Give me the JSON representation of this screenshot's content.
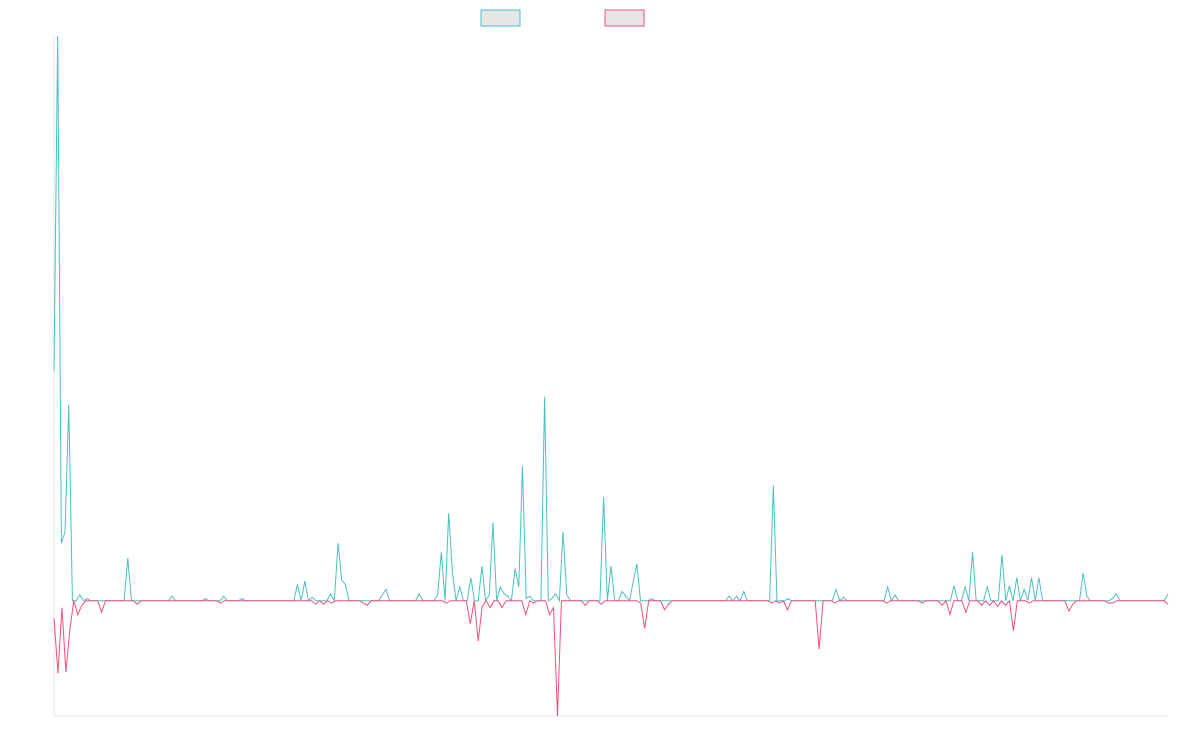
{
  "chart_data": {
    "type": "line",
    "title": "",
    "xlabel": "",
    "ylabel": "",
    "grid": false,
    "legend_position": "top-center",
    "legend_labels_visible": false,
    "ylim": [
      -1.0,
      4.9
    ],
    "baseline": 0,
    "series": [
      {
        "color": "#4bc0c0",
        "values": [
          2.0,
          4.9,
          0.5,
          0.6,
          1.7,
          0.0,
          0.0,
          0.05,
          0.0,
          0.02,
          0.0,
          0.0,
          0.0,
          0.0,
          0.0,
          0.0,
          0.0,
          0.0,
          0.0,
          0.0,
          0.37,
          0.0,
          0.0,
          0.0,
          0.0,
          0.0,
          0.0,
          0.0,
          0.0,
          0.0,
          0.0,
          0.0,
          0.04,
          0.0,
          0.0,
          0.0,
          0.0,
          0.0,
          0.0,
          0.0,
          0.0,
          0.02,
          0.0,
          0.0,
          0.0,
          0.0,
          0.04,
          0.0,
          0.0,
          0.0,
          0.0,
          0.02,
          0.0,
          0.0,
          0.0,
          0.0,
          0.0,
          0.0,
          0.0,
          0.0,
          0.0,
          0.0,
          0.0,
          0.0,
          0.0,
          0.0,
          0.14,
          0.0,
          0.17,
          0.0,
          0.03,
          0.0,
          0.0,
          0.0,
          0.0,
          0.06,
          0.0,
          0.5,
          0.18,
          0.14,
          0.0,
          0.0,
          0.0,
          0.0,
          0.0,
          0.0,
          0.0,
          0.0,
          0.0,
          0.05,
          0.1,
          0.0,
          0.0,
          0.0,
          0.0,
          0.0,
          0.0,
          0.0,
          0.0,
          0.06,
          0.0,
          0.0,
          0.0,
          0.0,
          0.05,
          0.42,
          0.0,
          0.76,
          0.25,
          0.0,
          0.12,
          0.0,
          0.0,
          0.2,
          0.0,
          0.0,
          0.3,
          0.0,
          0.05,
          0.68,
          0.0,
          0.12,
          0.06,
          0.04,
          0.0,
          0.28,
          0.12,
          1.17,
          0.02,
          0.04,
          0.0,
          0.0,
          0.0,
          1.77,
          0.0,
          0.02,
          0.06,
          0.0,
          0.6,
          0.05,
          0.0,
          0.0,
          0.0,
          0.0,
          0.0,
          0.0,
          0.0,
          0.0,
          0.0,
          0.9,
          0.0,
          0.3,
          0.0,
          0.0,
          0.08,
          0.04,
          0.0,
          0.16,
          0.32,
          0.0,
          0.0,
          0.0,
          0.02,
          0.0,
          0.0,
          0.0,
          0.0,
          0.0,
          0.0,
          0.0,
          0.0,
          0.0,
          0.0,
          0.0,
          0.0,
          0.0,
          0.0,
          0.0,
          0.0,
          0.0,
          0.0,
          0.0,
          0.0,
          0.04,
          0.0,
          0.04,
          0.0,
          0.08,
          0.0,
          0.0,
          0.0,
          0.0,
          0.0,
          0.0,
          0.0,
          1.0,
          0.0,
          0.0,
          0.0,
          0.02,
          0.0,
          0.0,
          0.0,
          0.0,
          0.0,
          0.0,
          0.0,
          0.0,
          0.0,
          0.0,
          0.0,
          0.0,
          0.1,
          0.0,
          0.03,
          0.0,
          0.0,
          0.0,
          0.0,
          0.0,
          0.0,
          0.0,
          0.0,
          0.0,
          0.0,
          0.0,
          0.12,
          0.0,
          0.05,
          0.0,
          0.0,
          0.0,
          0.0,
          0.0,
          0.0,
          0.0,
          0.0,
          0.0,
          0.0,
          0.0,
          0.0,
          0.0,
          0.0,
          0.0,
          0.13,
          0.0,
          0.0,
          0.12,
          0.0,
          0.42,
          0.0,
          0.0,
          0.0,
          0.12,
          0.0,
          0.0,
          0.0,
          0.4,
          0.0,
          0.13,
          0.0,
          0.2,
          0.0,
          0.1,
          0.0,
          0.2,
          0.0,
          0.2,
          0.0,
          0.0,
          0.0,
          0.0,
          0.0,
          0.0,
          0.0,
          0.0,
          0.0,
          0.0,
          0.0,
          0.24,
          0.04,
          0.0,
          0.0,
          0.0,
          0.0,
          0.0,
          0.0,
          0.02,
          0.06,
          0.0,
          0.0,
          0.0,
          0.0,
          0.0,
          0.0,
          0.0,
          0.0,
          0.0,
          0.0,
          0.0,
          0.0,
          0.0,
          0.06
        ]
      },
      {
        "color": "#f0507a",
        "values": [
          -0.15,
          -0.63,
          -0.06,
          -0.62,
          -0.25,
          0.0,
          -0.12,
          -0.04,
          0.0,
          0.0,
          0.0,
          0.0,
          -0.1,
          0.0,
          0.0,
          0.0,
          0.0,
          0.0,
          0.0,
          0.0,
          0.0,
          -0.03,
          0.0,
          0.0,
          0.0,
          0.0,
          0.0,
          0.0,
          0.0,
          0.0,
          0.0,
          0.0,
          0.0,
          0.0,
          0.0,
          0.0,
          0.0,
          0.0,
          0.0,
          0.0,
          0.0,
          0.0,
          -0.02,
          0.0,
          0.0,
          0.0,
          0.0,
          0.0,
          0.0,
          0.0,
          0.0,
          0.0,
          0.0,
          0.0,
          0.0,
          0.0,
          0.0,
          0.0,
          0.0,
          0.0,
          0.0,
          0.0,
          0.0,
          0.0,
          0.0,
          0.0,
          -0.03,
          0.0,
          -0.03,
          0.0,
          -0.02,
          0.0,
          0.0,
          0.0,
          0.0,
          0.0,
          0.0,
          0.0,
          -0.02,
          -0.04,
          0.0,
          0.0,
          0.0,
          0.0,
          0.0,
          0.0,
          0.0,
          0.0,
          0.0,
          0.0,
          0.0,
          0.0,
          0.0,
          0.0,
          0.0,
          0.0,
          0.0,
          0.0,
          0.0,
          -0.02,
          0.0,
          0.0,
          0.0,
          0.0,
          0.0,
          -0.2,
          0.0,
          -0.35,
          -0.05,
          0.0,
          -0.06,
          0.0,
          0.0,
          -0.06,
          0.0,
          0.0,
          0.0,
          0.0,
          0.0,
          -0.12,
          0.0,
          -0.02,
          0.0,
          0.0,
          0.0,
          -0.12,
          -0.06,
          -1.0,
          0.0,
          0.0,
          0.0,
          0.0,
          0.0,
          0.0,
          -0.04,
          0.0,
          0.0,
          0.0,
          -0.03,
          0.0,
          0.0,
          0.0,
          0.0,
          0.0,
          0.0,
          0.0,
          0.0,
          0.0,
          -0.02,
          -0.24,
          0.0,
          0.0,
          0.0,
          0.0,
          -0.08,
          -0.03,
          0.0,
          0.0,
          0.0,
          0.0,
          0.0,
          0.0,
          0.0,
          0.0,
          0.0,
          0.0,
          0.0,
          0.0,
          0.0,
          0.0,
          0.0,
          0.0,
          0.0,
          0.0,
          0.0,
          0.0,
          0.0,
          0.0,
          0.0,
          0.0,
          0.0,
          -0.02,
          0.0,
          -0.02,
          0.0,
          -0.08,
          0.0,
          0.0,
          0.0,
          0.0,
          0.0,
          0.0,
          0.0,
          -0.42,
          0.0,
          0.0,
          0.0,
          -0.02,
          0.0,
          0.0,
          0.0,
          0.0,
          0.0,
          0.0,
          0.0,
          0.0,
          0.0,
          0.0,
          0.0,
          0.0,
          -0.02,
          0.0,
          0.0,
          0.0,
          0.0,
          0.0,
          0.0,
          0.0,
          0.0,
          -0.02,
          0.0,
          0.0,
          0.0,
          0.0,
          -0.04,
          0.0,
          -0.12,
          0.0,
          0.0,
          0.0,
          -0.1,
          0.0,
          0.0,
          0.0,
          -0.04,
          0.0,
          -0.04,
          0.0,
          -0.05,
          0.0,
          -0.04,
          0.0,
          -0.26,
          0.0,
          0.0,
          0.0,
          -0.02,
          0.0,
          0.0,
          0.0,
          0.0,
          0.0,
          0.0,
          0.0,
          0.0,
          0.0,
          -0.09,
          -0.03,
          0.0,
          0.0,
          0.0,
          0.0,
          0.0,
          0.0,
          0.0,
          0.0,
          -0.02,
          -0.02,
          0.0,
          0.0,
          0.0,
          0.0,
          0.0,
          0.0,
          0.0,
          0.0,
          0.0,
          0.0,
          0.0,
          0.0,
          0.0,
          -0.03
        ]
      }
    ]
  }
}
